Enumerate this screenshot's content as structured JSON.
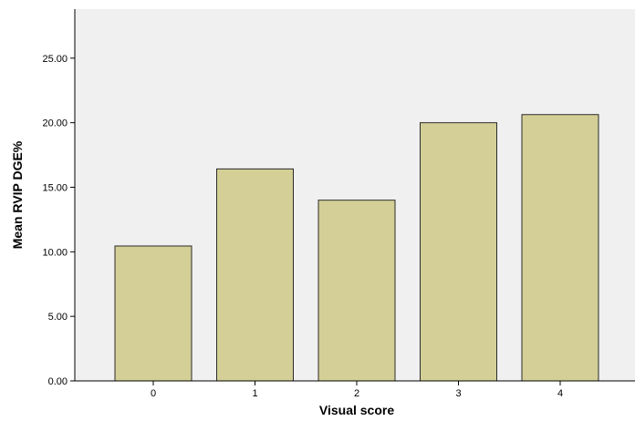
{
  "chart_data": {
    "type": "bar",
    "categories": [
      "0",
      "1",
      "2",
      "3",
      "4"
    ],
    "values": [
      10.45,
      16.42,
      14.0,
      20.0,
      20.63
    ],
    "xlabel": "Visual score",
    "ylabel": "Mean RVIP DGE%",
    "ylim": [
      0,
      28.8
    ],
    "yticks": [
      0,
      5,
      10,
      15,
      20,
      25
    ],
    "ytick_labels": [
      "0.00",
      "5.00",
      "10.00",
      "15.00",
      "20.00",
      "25.00"
    ],
    "grid": false,
    "legend": "none",
    "colors": {
      "bar_fill": "#d4cf96",
      "bar_stroke": "#2b2b2b",
      "plot_background": "#f0f0f0",
      "axis": "#000000"
    }
  }
}
